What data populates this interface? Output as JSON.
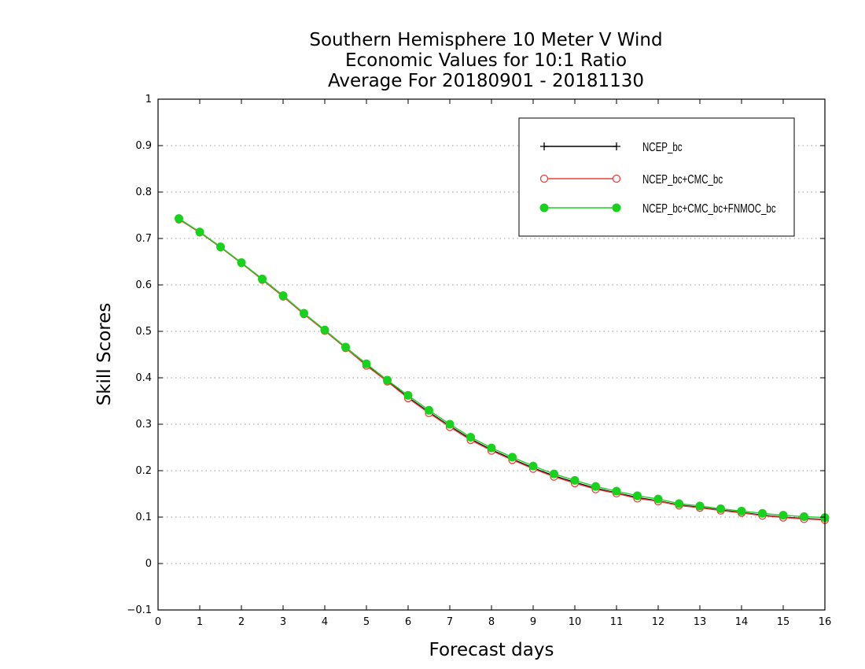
{
  "chart_data": {
    "type": "line",
    "title_lines": [
      "Southern Hemisphere 10 Meter V Wind",
      "Economic Values for 10:1 Ratio",
      "Average For 20180901 - 20181130"
    ],
    "xlabel": "Forecast days",
    "ylabel": "Skill Scores",
    "xlim": [
      0,
      16
    ],
    "ylim": [
      -0.1,
      1
    ],
    "xticks": [
      "0",
      "1",
      "2",
      "3",
      "4",
      "5",
      "6",
      "7",
      "8",
      "9",
      "10",
      "11",
      "12",
      "13",
      "14",
      "15",
      "16"
    ],
    "yticks": [
      "-0.1",
      "0",
      "0.1",
      "0.2",
      "0.3",
      "0.4",
      "0.5",
      "0.6",
      "0.7",
      "0.8",
      "0.9",
      "1"
    ],
    "grid": "dotted horizontal",
    "legend_position": "top-right",
    "x": [
      0.5,
      1,
      1.5,
      2,
      2.5,
      3,
      3.5,
      4,
      4.5,
      5,
      5.5,
      6,
      6.5,
      7,
      7.5,
      8,
      8.5,
      9,
      9.5,
      10,
      10.5,
      11,
      11.5,
      12,
      12.5,
      13,
      13.5,
      14,
      14.5,
      15,
      15.5,
      16
    ],
    "series": [
      {
        "name": "NCEP_bc",
        "color": "#000000",
        "marker": "plus",
        "values": [
          0.742,
          0.713,
          0.681,
          0.647,
          0.612,
          0.576,
          0.538,
          0.502,
          0.465,
          0.428,
          0.393,
          0.358,
          0.326,
          0.296,
          0.268,
          0.245,
          0.225,
          0.206,
          0.189,
          0.175,
          0.162,
          0.152,
          0.142,
          0.135,
          0.126,
          0.121,
          0.115,
          0.11,
          0.104,
          0.1,
          0.097,
          0.095
        ]
      },
      {
        "name": "NCEP_bc+CMC_bc",
        "color": "#e8413c",
        "marker": "open-circle",
        "values": [
          0.741,
          0.713,
          0.681,
          0.647,
          0.611,
          0.575,
          0.537,
          0.501,
          0.464,
          0.426,
          0.392,
          0.356,
          0.324,
          0.294,
          0.266,
          0.243,
          0.223,
          0.204,
          0.187,
          0.173,
          0.16,
          0.151,
          0.14,
          0.134,
          0.125,
          0.12,
          0.114,
          0.109,
          0.103,
          0.099,
          0.096,
          0.094
        ]
      },
      {
        "name": "NCEP_bc+CMC_bc+FNMOC_bc",
        "color": "#19d11e",
        "marker": "filled-circle",
        "values": [
          0.743,
          0.714,
          0.682,
          0.648,
          0.613,
          0.577,
          0.539,
          0.503,
          0.466,
          0.43,
          0.395,
          0.362,
          0.33,
          0.3,
          0.272,
          0.249,
          0.229,
          0.21,
          0.193,
          0.179,
          0.166,
          0.156,
          0.146,
          0.139,
          0.129,
          0.124,
          0.118,
          0.113,
          0.108,
          0.104,
          0.101,
          0.099
        ]
      }
    ]
  }
}
